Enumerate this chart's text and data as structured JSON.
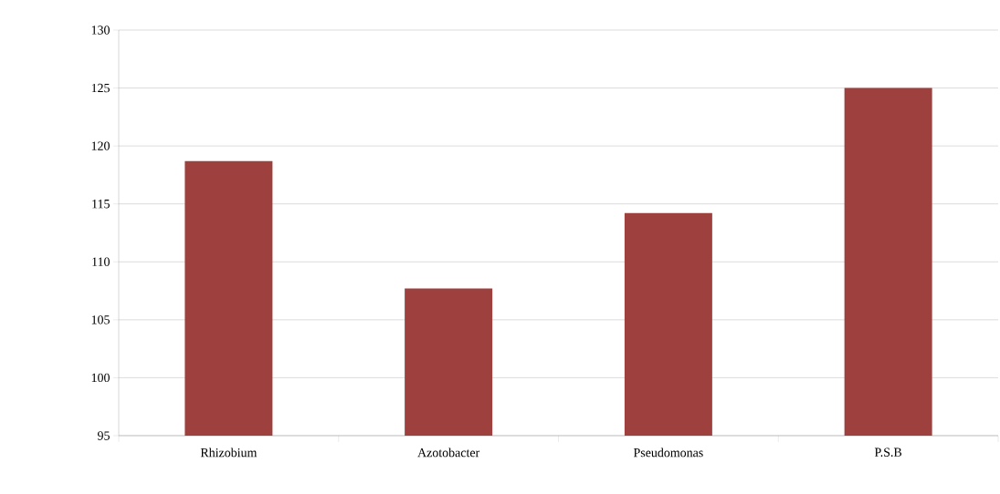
{
  "chart_data": {
    "type": "bar",
    "categories": [
      "Rhizobium",
      "Azotobacter",
      "Pseudomonas",
      "P.S.B"
    ],
    "values": [
      118.7,
      107.7,
      114.2,
      125.0
    ],
    "color": "#9e413e",
    "ylim": [
      95,
      130
    ],
    "yticks": [
      95,
      100,
      105,
      110,
      115,
      120,
      125,
      130
    ],
    "grid": "y"
  }
}
